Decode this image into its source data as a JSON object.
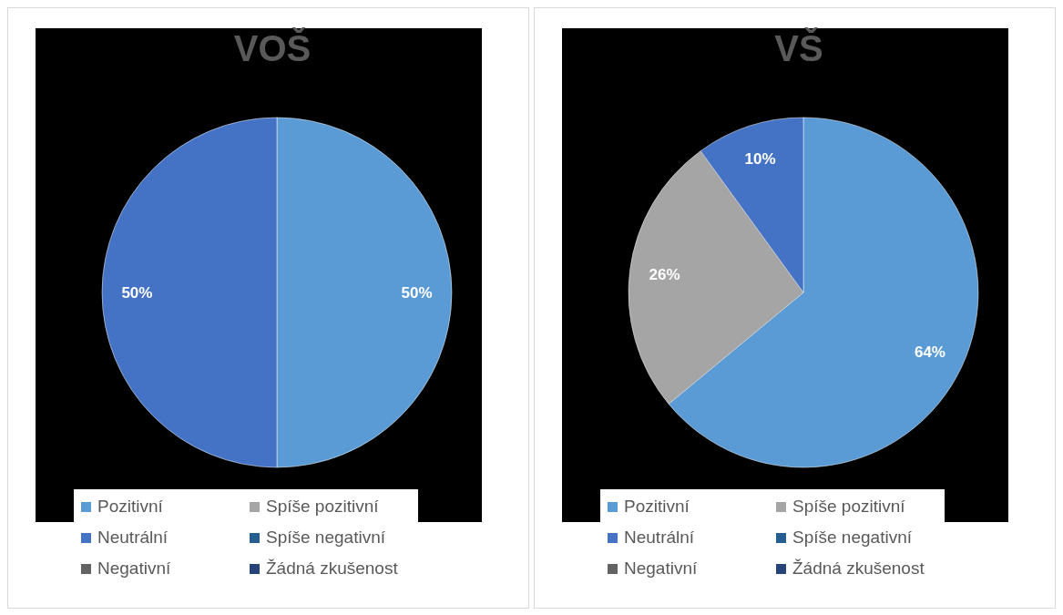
{
  "chart_data": [
    {
      "type": "pie",
      "title": "VOŠ",
      "categories": [
        "Pozitivní",
        "Spíše pozitivní",
        "Neutrální",
        "Spíše negativní",
        "Negativní",
        "Žádná zkušenost"
      ],
      "values": [
        50,
        0,
        50,
        0,
        0,
        0
      ],
      "colors": [
        "#5b9bd5",
        "#a5a5a5",
        "#4472c4",
        "#255e91",
        "#636363",
        "#264478"
      ],
      "value_labels": [
        "50%",
        null,
        "50%",
        null,
        null,
        null
      ],
      "legend": "bottom"
    },
    {
      "type": "pie",
      "title": "VŠ",
      "categories": [
        "Pozitivní",
        "Spíše pozitivní",
        "Neutrální",
        "Spíše negativní",
        "Negativní",
        "Žádná zkušenost"
      ],
      "values": [
        64,
        26,
        10,
        0,
        0,
        0
      ],
      "colors": [
        "#5b9bd5",
        "#a5a5a5",
        "#4472c4",
        "#255e91",
        "#636363",
        "#264478"
      ],
      "value_labels": [
        "64%",
        "26%",
        "10%",
        null,
        null,
        null
      ],
      "legend": "bottom"
    }
  ]
}
